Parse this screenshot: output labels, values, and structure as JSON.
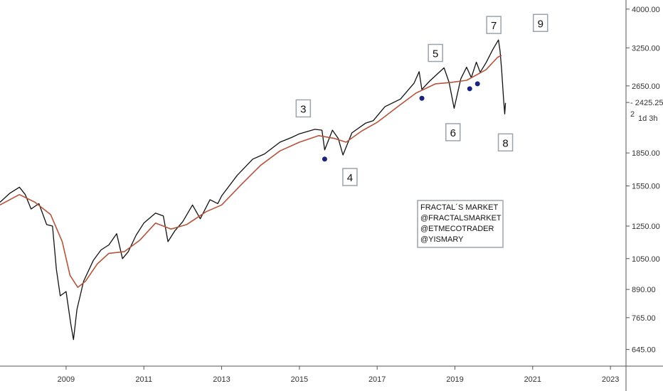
{
  "chart_data": {
    "type": "line",
    "title": "",
    "xlabel": "",
    "ylabel": "",
    "x_ticks": [
      "2009",
      "2011",
      "2013",
      "2015",
      "2017",
      "2019",
      "2021",
      "2023"
    ],
    "y_scale": "log",
    "y_ticks": [
      "4000.00",
      "3250.00",
      "2650.00",
      "1850.00",
      "1550.00",
      "1250.00",
      "1050.00",
      "890.00",
      "765.00",
      "645.00"
    ],
    "ylim": [
      590,
      4200
    ],
    "xlim": [
      2007.3,
      2023.4
    ],
    "price_label": "2425.25",
    "price_label_2": "2",
    "timeframe_label": "1d 3h",
    "series": [
      {
        "color": "#111111",
        "points": [
          [
            2007.3,
            1420
          ],
          [
            2007.55,
            1490
          ],
          [
            2007.8,
            1540
          ],
          [
            2007.95,
            1480
          ],
          [
            2008.1,
            1370
          ],
          [
            2008.3,
            1410
          ],
          [
            2008.5,
            1260
          ],
          [
            2008.65,
            1250
          ],
          [
            2008.75,
            990
          ],
          [
            2008.85,
            860
          ],
          [
            2009.0,
            880
          ],
          [
            2009.12,
            740
          ],
          [
            2009.19,
            680
          ],
          [
            2009.28,
            800
          ],
          [
            2009.45,
            930
          ],
          [
            2009.7,
            1040
          ],
          [
            2009.9,
            1100
          ],
          [
            2010.1,
            1130
          ],
          [
            2010.3,
            1200
          ],
          [
            2010.45,
            1050
          ],
          [
            2010.6,
            1090
          ],
          [
            2010.8,
            1190
          ],
          [
            2011.0,
            1270
          ],
          [
            2011.3,
            1340
          ],
          [
            2011.5,
            1320
          ],
          [
            2011.62,
            1150
          ],
          [
            2011.8,
            1220
          ],
          [
            2012.0,
            1280
          ],
          [
            2012.25,
            1400
          ],
          [
            2012.45,
            1300
          ],
          [
            2012.7,
            1440
          ],
          [
            2012.9,
            1410
          ],
          [
            2013.0,
            1470
          ],
          [
            2013.4,
            1640
          ],
          [
            2013.8,
            1790
          ],
          [
            2014.1,
            1840
          ],
          [
            2014.5,
            1960
          ],
          [
            2014.8,
            2010
          ],
          [
            2015.0,
            2050
          ],
          [
            2015.4,
            2100
          ],
          [
            2015.58,
            2090
          ],
          [
            2015.65,
            1880
          ],
          [
            2015.85,
            2090
          ],
          [
            2016.0,
            2000
          ],
          [
            2016.12,
            1830
          ],
          [
            2016.35,
            2060
          ],
          [
            2016.7,
            2170
          ],
          [
            2016.9,
            2200
          ],
          [
            2017.2,
            2370
          ],
          [
            2017.6,
            2470
          ],
          [
            2017.95,
            2690
          ],
          [
            2018.08,
            2860
          ],
          [
            2018.15,
            2600
          ],
          [
            2018.35,
            2720
          ],
          [
            2018.72,
            2920
          ],
          [
            2018.85,
            2700
          ],
          [
            2018.98,
            2350
          ],
          [
            2019.15,
            2750
          ],
          [
            2019.3,
            2930
          ],
          [
            2019.42,
            2770
          ],
          [
            2019.55,
            3010
          ],
          [
            2019.65,
            2850
          ],
          [
            2019.8,
            3000
          ],
          [
            2019.98,
            3230
          ],
          [
            2020.12,
            3390
          ],
          [
            2020.16,
            3200
          ],
          [
            2020.2,
            2900
          ],
          [
            2020.25,
            2480
          ],
          [
            2020.28,
            2280
          ],
          [
            2020.3,
            2420
          ]
        ]
      },
      {
        "color": "#b5543c",
        "points": [
          [
            2007.3,
            1400
          ],
          [
            2007.8,
            1480
          ],
          [
            2008.2,
            1420
          ],
          [
            2008.6,
            1330
          ],
          [
            2008.9,
            1150
          ],
          [
            2009.1,
            960
          ],
          [
            2009.3,
            900
          ],
          [
            2009.5,
            930
          ],
          [
            2009.8,
            1020
          ],
          [
            2010.1,
            1080
          ],
          [
            2010.5,
            1090
          ],
          [
            2010.9,
            1160
          ],
          [
            2011.3,
            1270
          ],
          [
            2011.7,
            1230
          ],
          [
            2012.1,
            1260
          ],
          [
            2012.6,
            1350
          ],
          [
            2013.0,
            1400
          ],
          [
            2013.5,
            1560
          ],
          [
            2014.0,
            1730
          ],
          [
            2014.5,
            1870
          ],
          [
            2015.0,
            1960
          ],
          [
            2015.5,
            2030
          ],
          [
            2015.9,
            2000
          ],
          [
            2016.2,
            1960
          ],
          [
            2016.6,
            2080
          ],
          [
            2017.0,
            2180
          ],
          [
            2017.5,
            2360
          ],
          [
            2018.0,
            2550
          ],
          [
            2018.5,
            2680
          ],
          [
            2018.9,
            2700
          ],
          [
            2019.3,
            2730
          ],
          [
            2019.8,
            2890
          ],
          [
            2020.1,
            3090
          ],
          [
            2020.2,
            3120
          ]
        ]
      }
    ],
    "markers": [
      {
        "x": 2015.65,
        "y": 1790
      },
      {
        "x": 2018.15,
        "y": 2480
      },
      {
        "x": 2019.38,
        "y": 2610
      },
      {
        "x": 2019.58,
        "y": 2680
      }
    ],
    "annotations": [
      {
        "label": "3",
        "x": 2015.1,
        "y": 2340
      },
      {
        "label": "4",
        "x": 2016.3,
        "y": 1620
      },
      {
        "label": "5",
        "x": 2018.5,
        "y": 3150
      },
      {
        "label": "6",
        "x": 2018.95,
        "y": 2060
      },
      {
        "label": "7",
        "x": 2020.0,
        "y": 3660
      },
      {
        "label": "8",
        "x": 2020.3,
        "y": 1950
      },
      {
        "label": "9",
        "x": 2021.2,
        "y": 3700
      }
    ],
    "note": [
      "FRACTAL´S MARKET",
      "@FRACTALSMARKET",
      "@ETMECOTRADER",
      "@YISMARY"
    ]
  }
}
